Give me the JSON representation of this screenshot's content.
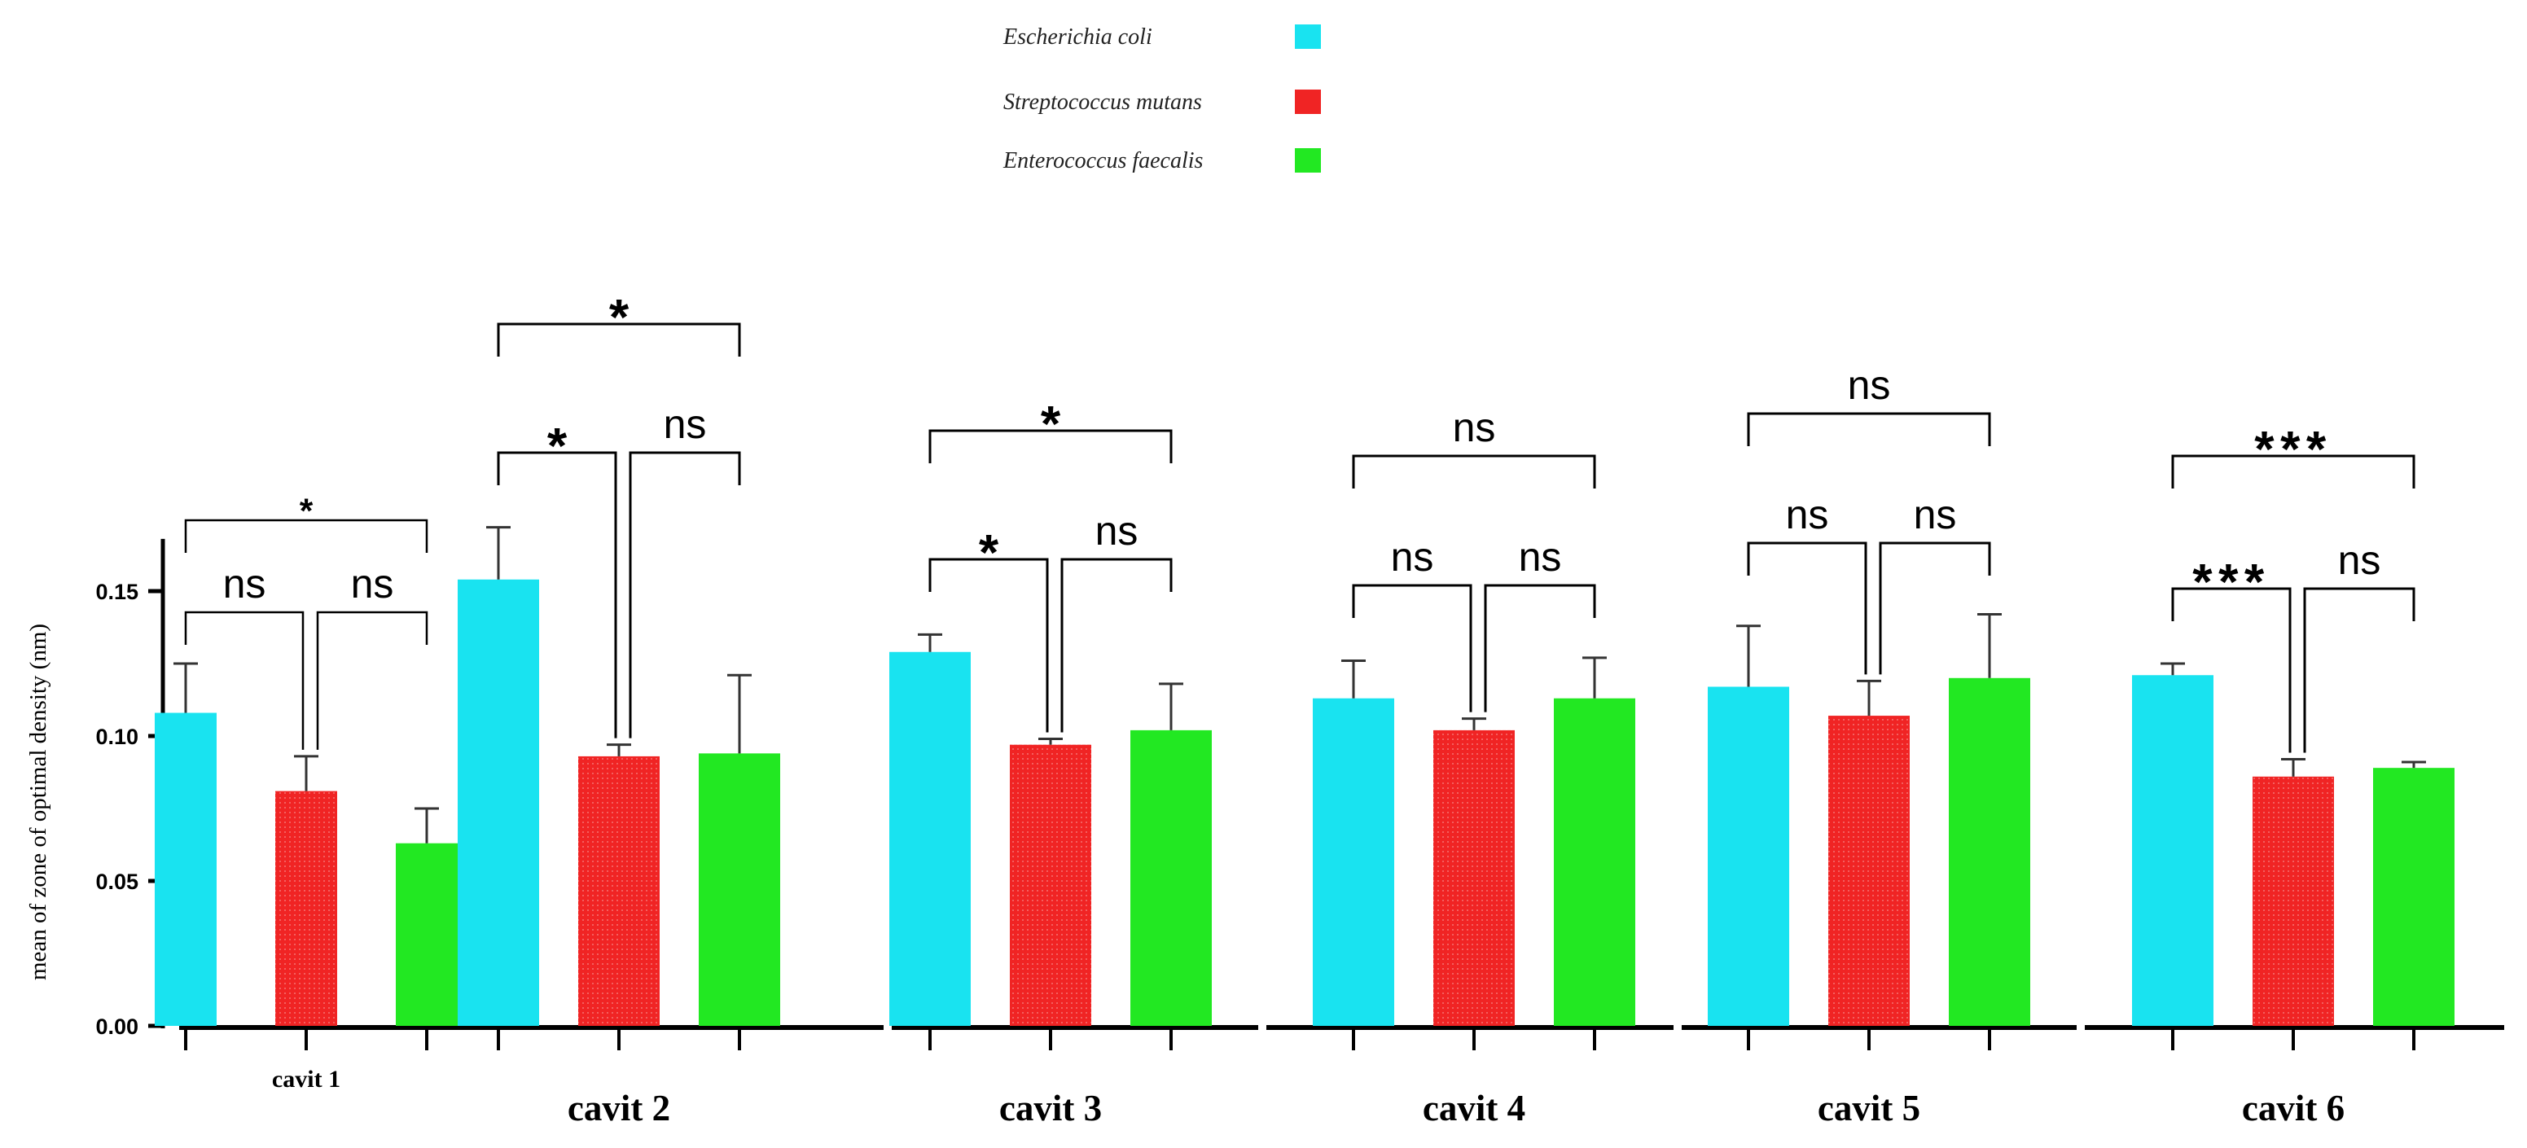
{
  "chart_data": {
    "type": "bar",
    "title": "",
    "xlabel": "",
    "ylabel": "mean of zone of optimal density (nm)",
    "ylim": [
      0,
      0.17
    ],
    "yticks": [
      "0.00",
      "0.05",
      "0.10",
      "0.15"
    ],
    "legend_position": "top-center",
    "categories": [
      "cavit   1",
      "cavit   2",
      "cavit   3",
      "cavit   4",
      "cavit   5",
      "cavit   6"
    ],
    "series": [
      {
        "name": "Escherichia coli",
        "color": "#19E3F0",
        "values": [
          0.108,
          0.154,
          0.129,
          0.113,
          0.117,
          0.121
        ],
        "errors": [
          0.017,
          0.018,
          0.006,
          0.013,
          0.021,
          0.004
        ]
      },
      {
        "name": "Streptococcus mutans",
        "color": "#F02424",
        "values": [
          0.081,
          0.093,
          0.097,
          0.102,
          0.107,
          0.086
        ],
        "errors": [
          0.012,
          0.004,
          0.002,
          0.004,
          0.012,
          0.006
        ]
      },
      {
        "name": "Enterococcus faecalis",
        "color": "#22E822",
        "values": [
          0.063,
          0.094,
          0.102,
          0.113,
          0.12,
          0.089
        ],
        "errors": [
          0.012,
          0.027,
          0.016,
          0.014,
          0.022,
          0.002
        ]
      }
    ],
    "significance": [
      {
        "group": 0,
        "pair": "1-2",
        "label": "ns"
      },
      {
        "group": 0,
        "pair": "2-3",
        "label": "ns"
      },
      {
        "group": 0,
        "pair": "1-3",
        "label": "*"
      },
      {
        "group": 1,
        "pair": "1-2",
        "label": "*"
      },
      {
        "group": 1,
        "pair": "2-3",
        "label": "ns"
      },
      {
        "group": 1,
        "pair": "1-3",
        "label": "*"
      },
      {
        "group": 2,
        "pair": "1-2",
        "label": "*"
      },
      {
        "group": 2,
        "pair": "2-3",
        "label": "ns"
      },
      {
        "group": 2,
        "pair": "1-3",
        "label": "*"
      },
      {
        "group": 3,
        "pair": "1-2",
        "label": "ns"
      },
      {
        "group": 3,
        "pair": "2-3",
        "label": "ns"
      },
      {
        "group": 3,
        "pair": "1-3",
        "label": "ns"
      },
      {
        "group": 4,
        "pair": "1-2",
        "label": "ns"
      },
      {
        "group": 4,
        "pair": "2-3",
        "label": "ns"
      },
      {
        "group": 4,
        "pair": "1-3",
        "label": "ns"
      },
      {
        "group": 5,
        "pair": "1-2",
        "label": "***"
      },
      {
        "group": 5,
        "pair": "2-3",
        "label": "ns"
      },
      {
        "group": 5,
        "pair": "1-3",
        "label": "***"
      }
    ]
  }
}
